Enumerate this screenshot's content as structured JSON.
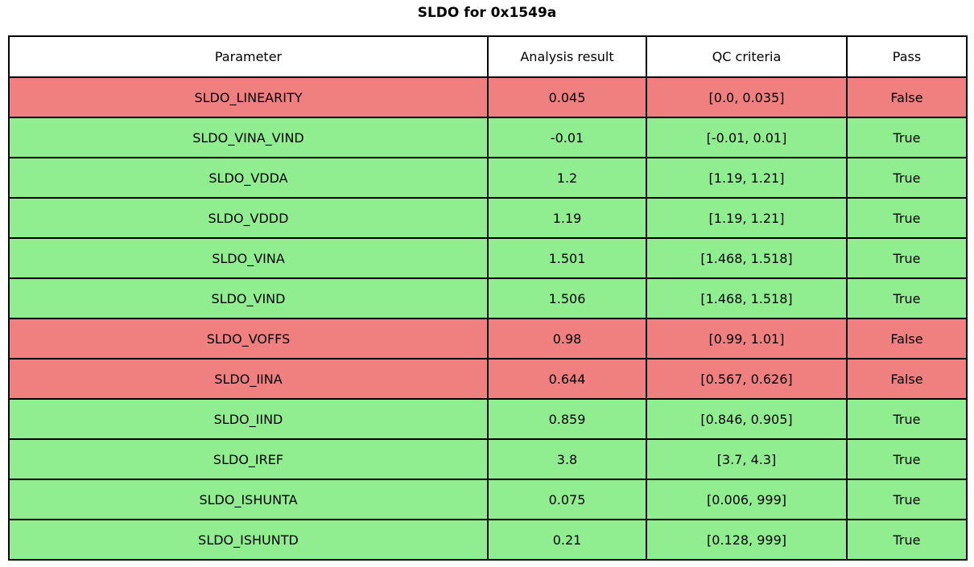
{
  "title": "SLDO for 0x1549a",
  "colors": {
    "pass_row": "#90ee90",
    "fail_row": "#f08080",
    "border": "#000000",
    "header_bg": "#ffffff",
    "text": "#000000"
  },
  "chart_data": {
    "type": "table",
    "title": "SLDO for 0x1549a",
    "columns": [
      "Parameter",
      "Analysis result",
      "QC criteria",
      "Pass"
    ],
    "rows": [
      {
        "parameter": "SLDO_LINEARITY",
        "result": "0.045",
        "criteria": "[0.0, 0.035]",
        "pass": "False"
      },
      {
        "parameter": "SLDO_VINA_VIND",
        "result": "-0.01",
        "criteria": "[-0.01, 0.01]",
        "pass": "True"
      },
      {
        "parameter": "SLDO_VDDA",
        "result": "1.2",
        "criteria": "[1.19, 1.21]",
        "pass": "True"
      },
      {
        "parameter": "SLDO_VDDD",
        "result": "1.19",
        "criteria": "[1.19, 1.21]",
        "pass": "True"
      },
      {
        "parameter": "SLDO_VINA",
        "result": "1.501",
        "criteria": "[1.468, 1.518]",
        "pass": "True"
      },
      {
        "parameter": "SLDO_VIND",
        "result": "1.506",
        "criteria": "[1.468, 1.518]",
        "pass": "True"
      },
      {
        "parameter": "SLDO_VOFFS",
        "result": "0.98",
        "criteria": "[0.99, 1.01]",
        "pass": "False"
      },
      {
        "parameter": "SLDO_IINA",
        "result": "0.644",
        "criteria": "[0.567, 0.626]",
        "pass": "False"
      },
      {
        "parameter": "SLDO_IIND",
        "result": "0.859",
        "criteria": "[0.846, 0.905]",
        "pass": "True"
      },
      {
        "parameter": "SLDO_IREF",
        "result": "3.8",
        "criteria": "[3.7, 4.3]",
        "pass": "True"
      },
      {
        "parameter": "SLDO_ISHUNTA",
        "result": "0.075",
        "criteria": "[0.006, 999]",
        "pass": "True"
      },
      {
        "parameter": "SLDO_ISHUNTD",
        "result": "0.21",
        "criteria": "[0.128, 999]",
        "pass": "True"
      }
    ]
  }
}
